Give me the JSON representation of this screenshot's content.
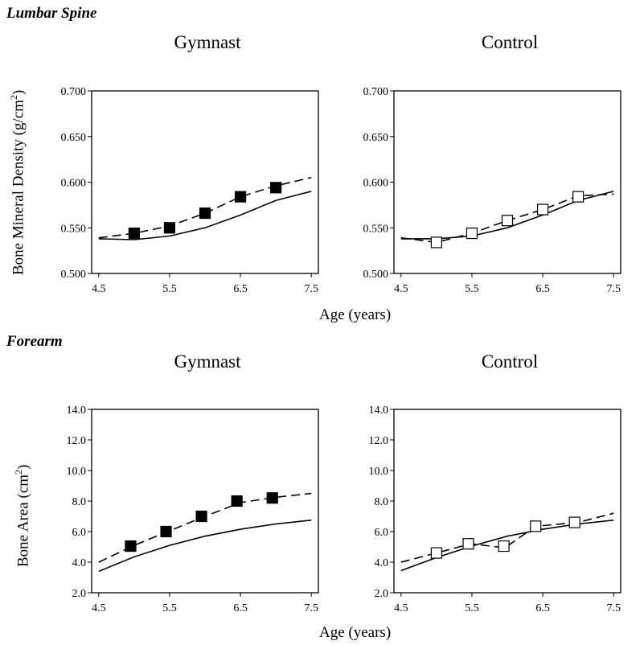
{
  "sections": {
    "lumbar": "Lumbar Spine",
    "forearm": "Forearm"
  },
  "xlabel": "Age (years)",
  "ylabels": {
    "bmd": "Bone Mineral Density (g/cm",
    "bmd_sup": "2",
    "bmd_end": ")",
    "area": "Bone Area  (cm",
    "area_sup": "2",
    "area_end": ")"
  },
  "chart_data": [
    {
      "type": "line",
      "panel": "lumbar-gymnast",
      "title": "Gymnast",
      "xlabel": "Age (years)",
      "ylabel": "Bone Mineral Density (g/cm2)",
      "xlim": [
        4.4,
        7.6
      ],
      "ylim": [
        0.5,
        0.7
      ],
      "xticks": [
        "4.5",
        "5.5",
        "6.5",
        "7.5"
      ],
      "xtick_values": [
        4.5,
        5.5,
        6.5,
        7.5
      ],
      "yticks": [
        "0.500",
        "0.550",
        "0.600",
        "0.650",
        "0.700"
      ],
      "ytick_values": [
        0.5,
        0.55,
        0.6,
        0.65,
        0.7
      ],
      "marker": "filled",
      "series": [
        {
          "style": "solid",
          "x": [
            4.5,
            5.0,
            5.5,
            6.0,
            6.5,
            7.0,
            7.5
          ],
          "y": [
            0.538,
            0.537,
            0.541,
            0.55,
            0.564,
            0.58,
            0.59
          ]
        },
        {
          "style": "dashed",
          "x": [
            4.5,
            5.0,
            5.5,
            6.0,
            6.5,
            7.0,
            7.5
          ],
          "y": [
            0.539,
            0.544,
            0.552,
            0.566,
            0.584,
            0.596,
            0.605
          ]
        },
        {
          "style": "markers",
          "x": [
            5.0,
            5.5,
            6.0,
            6.5,
            7.0
          ],
          "y": [
            0.544,
            0.55,
            0.566,
            0.584,
            0.594
          ]
        }
      ]
    },
    {
      "type": "line",
      "panel": "lumbar-control",
      "title": "Control",
      "xlabel": "Age (years)",
      "ylabel": "Bone Mineral Density (g/cm2)",
      "xlim": [
        4.4,
        7.6
      ],
      "ylim": [
        0.5,
        0.7
      ],
      "xticks": [
        "4.5",
        "5.5",
        "6.5",
        "7.5"
      ],
      "xtick_values": [
        4.5,
        5.5,
        6.5,
        7.5
      ],
      "yticks": [
        "0.500",
        "0.550",
        "0.600",
        "0.650",
        "0.700"
      ],
      "ytick_values": [
        0.5,
        0.55,
        0.6,
        0.65,
        0.7
      ],
      "marker": "open",
      "series": [
        {
          "style": "solid",
          "x": [
            4.5,
            5.0,
            5.5,
            6.0,
            6.5,
            7.0,
            7.5
          ],
          "y": [
            0.538,
            0.538,
            0.541,
            0.55,
            0.564,
            0.58,
            0.59
          ]
        },
        {
          "style": "dashed",
          "x": [
            4.5,
            5.0,
            5.5,
            6.0,
            6.5,
            7.0,
            7.5
          ],
          "y": [
            0.539,
            0.534,
            0.544,
            0.558,
            0.57,
            0.585,
            0.587
          ]
        },
        {
          "style": "markers",
          "x": [
            5.0,
            5.5,
            6.0,
            6.5,
            7.0
          ],
          "y": [
            0.534,
            0.544,
            0.558,
            0.57,
            0.584
          ]
        }
      ]
    },
    {
      "type": "line",
      "panel": "forearm-gymnast",
      "title": "Gymnast",
      "xlabel": "Age (years)",
      "ylabel": "Bone Area (cm2)",
      "xlim": [
        4.4,
        7.6
      ],
      "ylim": [
        2.0,
        14.0
      ],
      "xticks": [
        "4.5",
        "5.5",
        "6.5",
        "7.5"
      ],
      "xtick_values": [
        4.5,
        5.5,
        6.5,
        7.5
      ],
      "yticks": [
        "2.0",
        "4.0",
        "6.0",
        "8.0",
        "10.0",
        "12.0",
        "14.0"
      ],
      "ytick_values": [
        2,
        4,
        6,
        8,
        10,
        12,
        14
      ],
      "marker": "filled",
      "series": [
        {
          "style": "solid",
          "x": [
            4.5,
            5.0,
            5.5,
            6.0,
            6.5,
            7.0,
            7.5
          ],
          "y": [
            3.4,
            4.35,
            5.1,
            5.7,
            6.15,
            6.5,
            6.75
          ]
        },
        {
          "style": "dashed",
          "x": [
            4.5,
            5.0,
            5.5,
            6.0,
            6.5,
            7.0,
            7.5
          ],
          "y": [
            4.0,
            5.1,
            6.05,
            7.0,
            7.9,
            8.25,
            8.5
          ]
        },
        {
          "style": "markers",
          "x": [
            4.95,
            5.45,
            5.95,
            6.45,
            6.95
          ],
          "y": [
            5.05,
            6.0,
            7.0,
            8.0,
            8.2
          ]
        }
      ]
    },
    {
      "type": "line",
      "panel": "forearm-control",
      "title": "Control",
      "xlabel": "Age (years)",
      "ylabel": "Bone Area (cm2)",
      "xlim": [
        4.4,
        7.6
      ],
      "ylim": [
        2.0,
        14.0
      ],
      "xticks": [
        "4.5",
        "5.5",
        "6.5",
        "7.5"
      ],
      "xtick_values": [
        4.5,
        5.5,
        6.5,
        7.5
      ],
      "yticks": [
        "2.0",
        "4.0",
        "6.0",
        "8.0",
        "10.0",
        "12.0",
        "14.0"
      ],
      "ytick_values": [
        2,
        4,
        6,
        8,
        10,
        12,
        14
      ],
      "marker": "open",
      "series": [
        {
          "style": "solid",
          "x": [
            4.5,
            5.0,
            5.5,
            6.0,
            6.5,
            7.0,
            7.5
          ],
          "y": [
            3.45,
            4.3,
            5.05,
            5.7,
            6.15,
            6.5,
            6.75
          ]
        },
        {
          "style": "dashed",
          "x": [
            4.5,
            5.0,
            5.4,
            5.5,
            5.85,
            5.95,
            6.0,
            6.4,
            7.0,
            7.5
          ],
          "y": [
            4.0,
            4.6,
            5.1,
            5.2,
            5.0,
            5.05,
            5.05,
            6.35,
            6.6,
            7.2
          ]
        },
        {
          "style": "markers",
          "x": [
            5.0,
            5.45,
            5.95,
            6.4,
            6.95
          ],
          "y": [
            4.6,
            5.2,
            5.05,
            6.35,
            6.6
          ]
        }
      ]
    }
  ]
}
